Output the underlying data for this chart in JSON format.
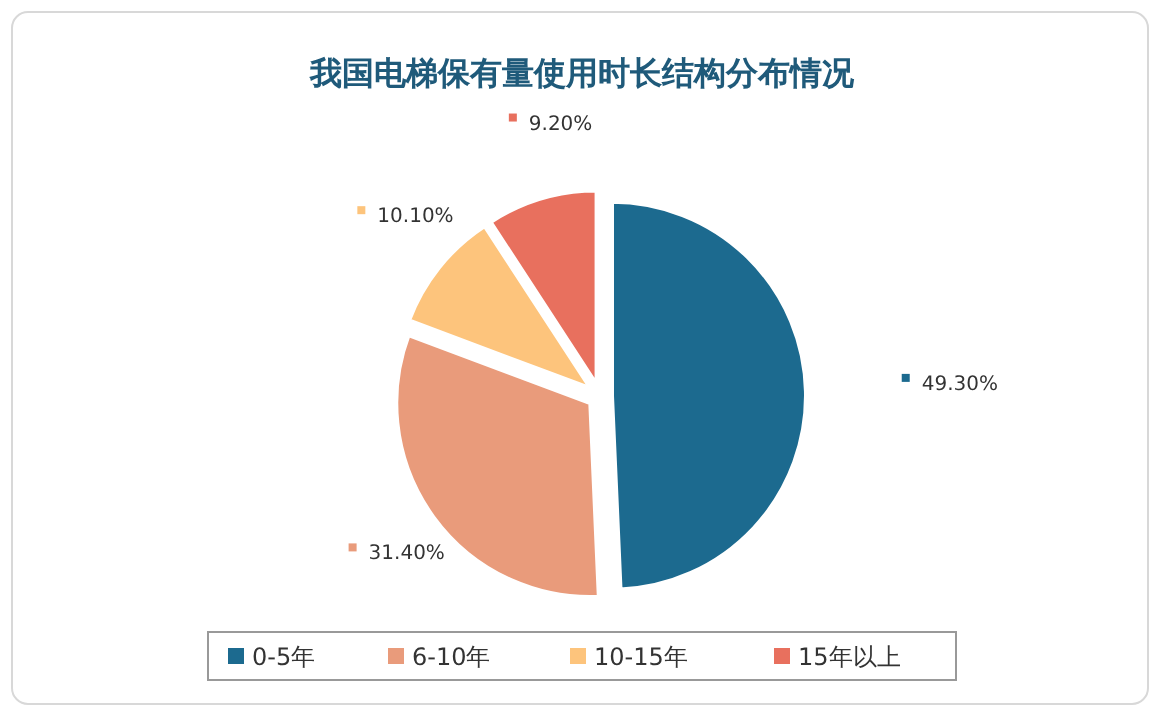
{
  "chart_data": {
    "type": "pie",
    "title": "我国电梯保有量使用时长结构分布情况",
    "categories": [
      "0-5年",
      "6-10年",
      "10-15年",
      "15年以上"
    ],
    "values": [
      49.3,
      31.4,
      10.1,
      9.2
    ],
    "colors": [
      "#1c6a8f",
      "#e99b7b",
      "#fdc47c",
      "#e8705e"
    ],
    "value_labels": [
      "49.30%",
      "31.40%",
      "10.10%",
      "9.20%"
    ],
    "legend": "bottom"
  }
}
